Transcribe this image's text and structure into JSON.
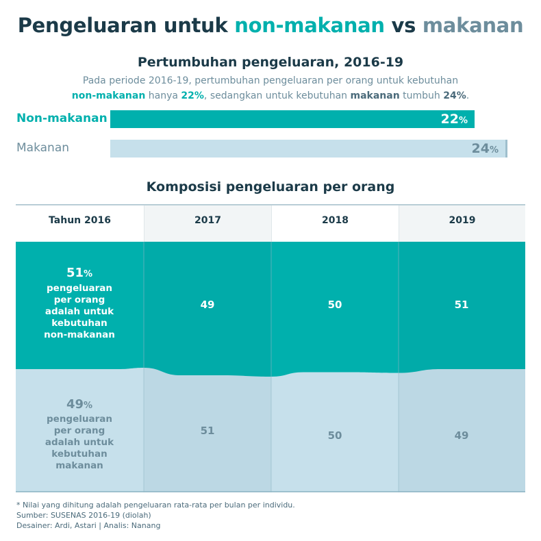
{
  "title": {
    "part1": "Pengeluaran untuk ",
    "part2": "non-makanan",
    "part3": " vs ",
    "part4": "makanan"
  },
  "growth": {
    "title": "Pertumbuhan pengeluaran, 2016-19",
    "desc": {
      "t1": "Pada periode 2016-19, pertumbuhan pengeluaran per orang untuk kebutuhan",
      "t2": "non-makanan",
      "t3": " hanya ",
      "t4": "22%",
      "t5": ", sedangkan untuk kebutuhan ",
      "t6": "makanan",
      "t7": " tumbuh ",
      "t8": "24%",
      "t9": "."
    }
  },
  "composition": {
    "title": "Komposisi pengeluaran per orang",
    "headers": [
      "Tahun 2016",
      "2017",
      "2018",
      "2019"
    ],
    "first_nonfood": {
      "value": "51",
      "unit": "%",
      "text": "pengeluaran per orang adalah untuk kebutuhan non-makanan"
    },
    "first_food": {
      "value": "49",
      "unit": "%",
      "text": "pengeluaran per orang adalah untuk kebutuhan makanan"
    }
  },
  "colors": {
    "nonfood": "#00b0ad",
    "nonfood_dark": "#009e9b",
    "food": "#c6e0eb",
    "food_dark": "#bcd8e4",
    "grey_text": "#6d8d9c"
  },
  "chart_data": [
    {
      "type": "bar",
      "title": "Pertumbuhan pengeluaran, 2016-19",
      "categories": [
        "Non-makanan",
        "Makanan"
      ],
      "values": [
        22,
        24
      ],
      "value_unit": "%"
    },
    {
      "type": "area",
      "title": "Komposisi pengeluaran per orang",
      "categories": [
        "Tahun 2016",
        "2017",
        "2018",
        "2019"
      ],
      "series": [
        {
          "name": "non-makanan",
          "values": [
            51,
            49,
            50,
            51
          ]
        },
        {
          "name": "makanan",
          "values": [
            49,
            51,
            50,
            49
          ]
        }
      ],
      "ylim": [
        0,
        100
      ]
    }
  ],
  "footnote": {
    "line1": "* Nilai yang dihitung adalah pengeluaran rata-rata per bulan per individu.",
    "line2": "Sumber: SUSENAS 2016-19 (diolah)",
    "line3": "Desainer: Ardi, Astari | Analis: Nanang"
  }
}
